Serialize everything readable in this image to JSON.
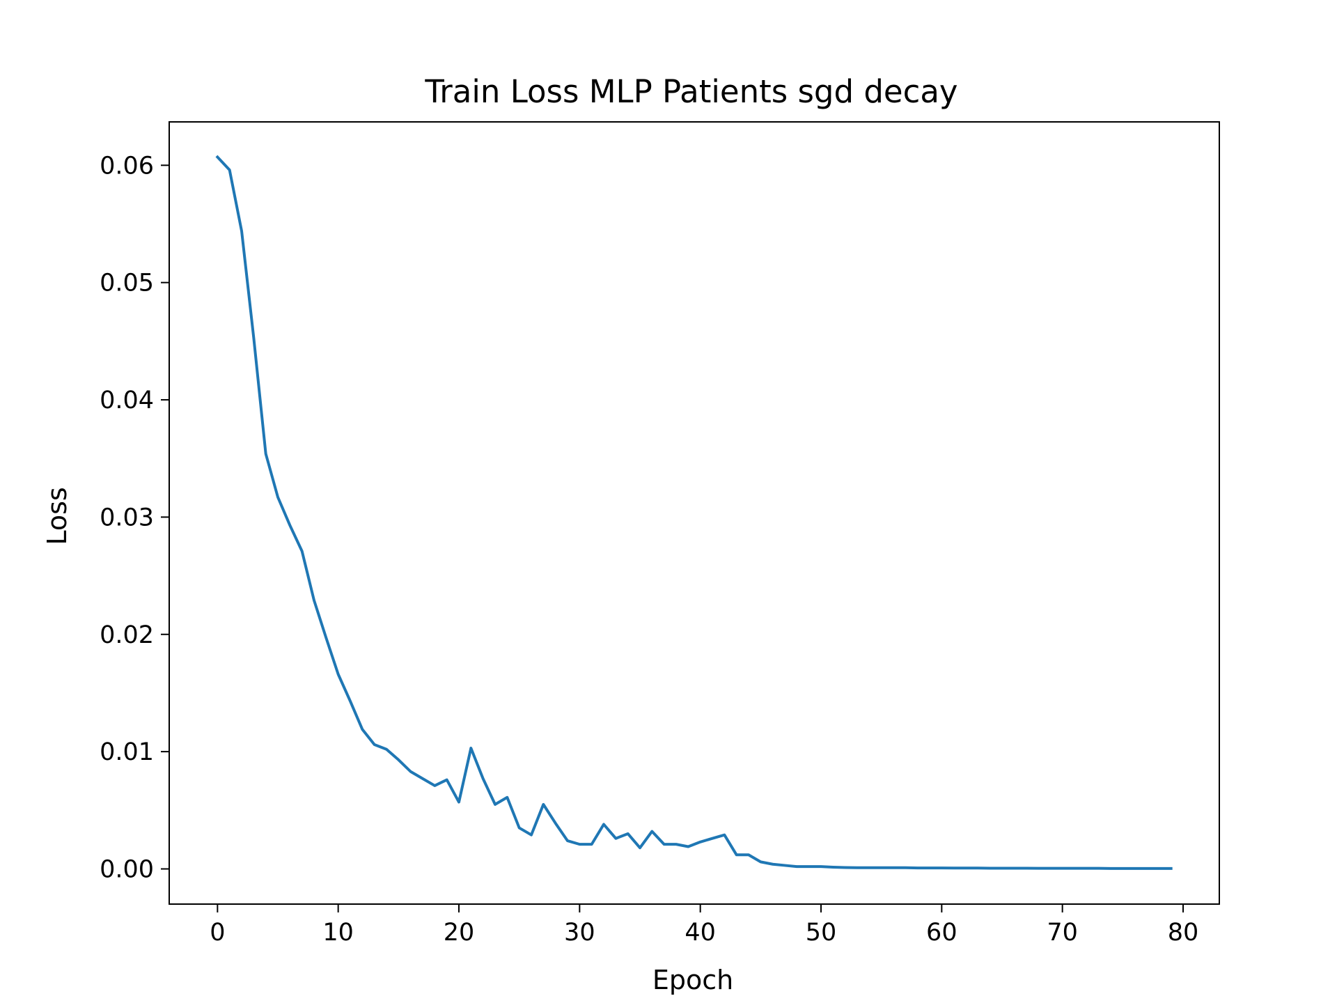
{
  "chart_data": {
    "type": "line",
    "title": "Train Loss MLP Patients sgd decay",
    "xlabel": "Epoch",
    "ylabel": "Loss",
    "xlim": [
      -4,
      83
    ],
    "ylim": [
      -0.003,
      0.0637
    ],
    "xticks": [
      0,
      10,
      20,
      30,
      40,
      50,
      60,
      70,
      80
    ],
    "xtick_labels": [
      "0",
      "10",
      "20",
      "30",
      "40",
      "50",
      "60",
      "70",
      "80"
    ],
    "yticks": [
      0.0,
      0.01,
      0.02,
      0.03,
      0.04,
      0.05,
      0.06
    ],
    "ytick_labels": [
      "0.00",
      "0.01",
      "0.02",
      "0.03",
      "0.04",
      "0.05",
      "0.06"
    ],
    "grid": false,
    "legend": "none",
    "series": [
      {
        "color": "#1f77b4",
        "x": [
          0,
          1,
          2,
          3,
          4,
          5,
          6,
          7,
          8,
          9,
          10,
          11,
          12,
          13,
          14,
          15,
          16,
          17,
          18,
          19,
          20,
          21,
          22,
          23,
          24,
          25,
          26,
          27,
          28,
          29,
          30,
          31,
          32,
          33,
          34,
          35,
          36,
          37,
          38,
          39,
          40,
          41,
          42,
          43,
          44,
          45,
          46,
          47,
          48,
          49,
          50,
          51,
          52,
          53,
          54,
          55,
          56,
          57,
          58,
          59,
          60,
          61,
          62,
          63,
          64,
          65,
          66,
          67,
          68,
          69,
          70,
          71,
          72,
          73,
          74,
          75,
          76,
          77,
          78,
          79
        ],
        "values": [
          0.0607,
          0.0596,
          0.0544,
          0.0453,
          0.0354,
          0.0317,
          0.0293,
          0.0271,
          0.0229,
          0.0197,
          0.0166,
          0.0143,
          0.0119,
          0.0106,
          0.0102,
          0.0093,
          0.0083,
          0.0077,
          0.0071,
          0.0076,
          0.0057,
          0.0103,
          0.0077,
          0.0055,
          0.0061,
          0.0035,
          0.0029,
          0.0055,
          0.0039,
          0.0024,
          0.0021,
          0.0021,
          0.0038,
          0.0026,
          0.003,
          0.0018,
          0.0032,
          0.0021,
          0.0021,
          0.0019,
          0.0023,
          0.0026,
          0.0029,
          0.0012,
          0.0012,
          0.0006,
          0.0004,
          0.0003,
          0.0002,
          0.0002,
          0.0002,
          0.00015,
          0.00012,
          0.0001,
          0.0001,
          0.0001,
          0.0001,
          0.0001,
          8e-05,
          8e-05,
          8e-05,
          7e-05,
          7e-05,
          7e-05,
          6e-05,
          6e-05,
          6e-05,
          6e-05,
          5e-05,
          5e-05,
          5e-05,
          5e-05,
          5e-05,
          5e-05,
          4e-05,
          4e-05,
          4e-05,
          4e-05,
          4e-05,
          4e-05
        ]
      }
    ]
  }
}
